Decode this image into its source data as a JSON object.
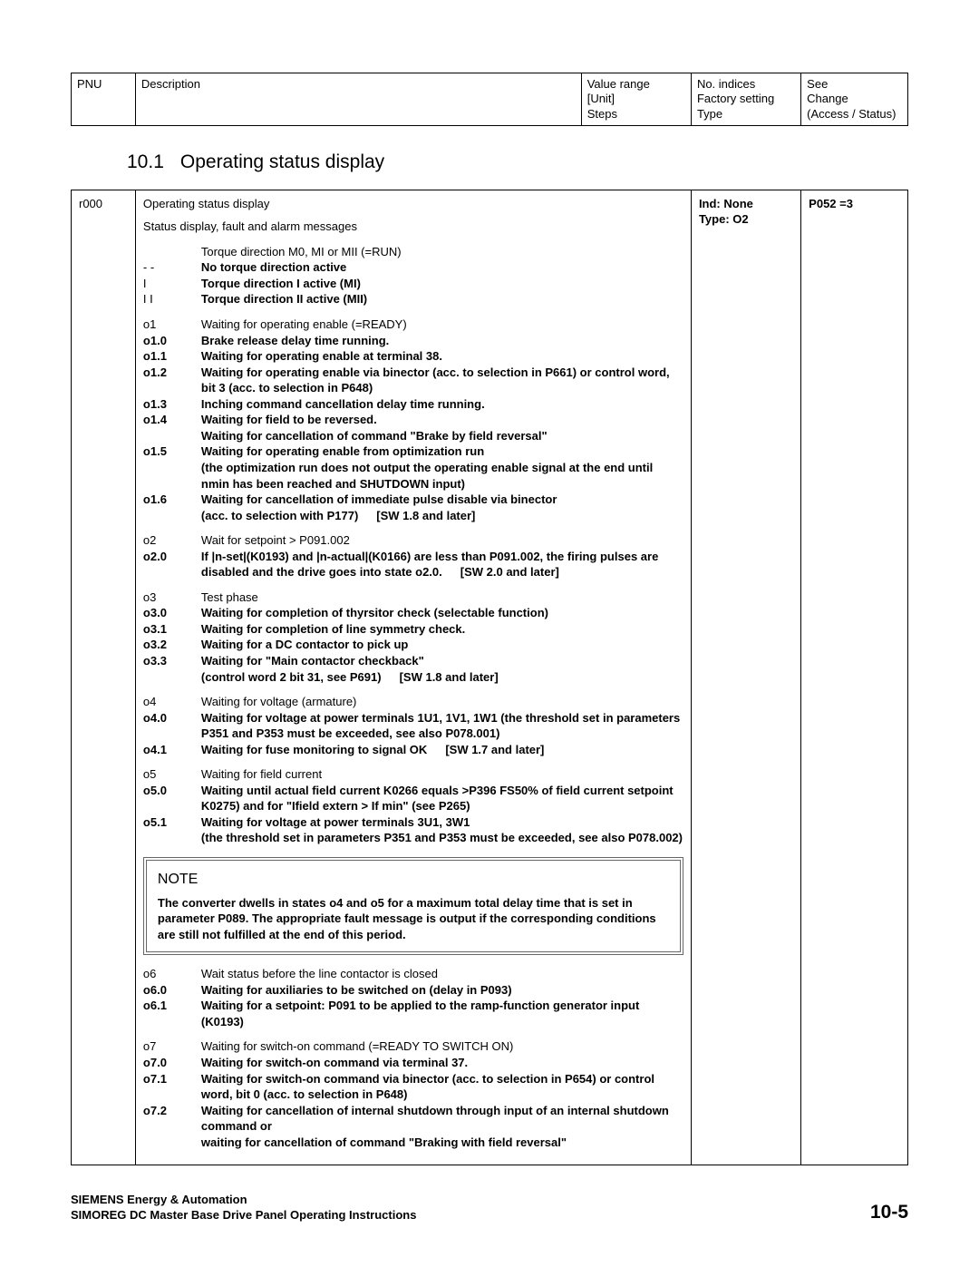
{
  "header_table": {
    "c1": "PNU",
    "c2": "Description",
    "c3": "Value range\n[Unit]\nSteps",
    "c4": "No. indices\nFactory setting\nType",
    "c5": "See\nChange\n(Access / Status)"
  },
  "section": {
    "number": "10.1",
    "title": "Operating status display"
  },
  "param": {
    "pnu": "r000",
    "title": "Operating status display",
    "ind": "Ind: None",
    "type": "Type: O2",
    "see": "P052 =3",
    "intro": "Status display, fault and alarm messages",
    "group0": {
      "r1": {
        "code": "",
        "txt": "Torque direction M0, MI or MII  (=RUN)"
      },
      "r2": {
        "code": "- -",
        "txt": "No torque direction active"
      },
      "r3": {
        "code": "I",
        "txt": "Torque direction I active (MI)"
      },
      "r4": {
        "code": "I I",
        "txt": "Torque direction II active (MII)"
      }
    },
    "group1": {
      "r1": {
        "code": "o1",
        "txt": "Waiting for operating enable  (=READY)"
      },
      "r2": {
        "code": "o1.0",
        "txt": "Brake release delay time running."
      },
      "r3": {
        "code": "o1.1",
        "txt": "Waiting for operating enable at terminal 38."
      },
      "r4": {
        "code": "o1.2",
        "txt": "Waiting for operating enable via binector (acc. to selection in P661) or control word, bit 3 (acc. to selection in P648)"
      },
      "r5": {
        "code": "o1.3",
        "txt": "Inching command cancellation delay time running."
      },
      "r6": {
        "code": "o1.4",
        "txt": "Waiting for field to be reversed.\nWaiting for cancellation of command \"Brake by field reversal\""
      },
      "r7": {
        "code": "o1.5",
        "txt": "Waiting for operating enable from optimization run\n(the optimization run does not output the operating enable signal at the end until nmin has been reached and SHUTDOWN input)"
      },
      "r8": {
        "code": "o1.6",
        "txt": "Waiting for cancellation of immediate pulse disable via binector\n(acc. to selection with P177)",
        "sw": "[SW 1.8 and later]"
      }
    },
    "group2": {
      "r1": {
        "code": "o2",
        "txt": "Wait for setpoint > P091.002"
      },
      "r2": {
        "code": "o2.0",
        "txt": "If |n-set|(K0193) and |n-actual|(K0166) are less than P091.002, the firing pulses are disabled and the drive goes into state o2.0.",
        "sw": "[SW 2.0 and later]"
      }
    },
    "group3": {
      "r1": {
        "code": "o3",
        "txt": "Test phase"
      },
      "r2": {
        "code": "o3.0",
        "txt": "Waiting for completion of thyrsitor check (selectable function)"
      },
      "r3": {
        "code": "o3.1",
        "txt": "Waiting for completion of line symmetry check."
      },
      "r4": {
        "code": "o3.2",
        "txt": "Waiting for a DC contactor to pick up"
      },
      "r5": {
        "code": "o3.3",
        "txt": "Waiting for \"Main contactor checkback\"\n(control word 2 bit 31, see P691)",
        "sw": "[SW 1.8 and later]"
      }
    },
    "group4": {
      "r1": {
        "code": "o4",
        "txt": "Waiting for voltage (armature)"
      },
      "r2": {
        "code": "o4.0",
        "txt": "Waiting for voltage at power terminals 1U1, 1V1, 1W1 (the threshold set in parameters P351 and P353 must be exceeded, see also P078.001)"
      },
      "r3": {
        "code": "o4.1",
        "txt": "Waiting for fuse monitoring to signal OK",
        "sw": "[SW 1.7 and later]"
      }
    },
    "group5": {
      "r1": {
        "code": "o5",
        "txt": "Waiting for field current"
      },
      "r2": {
        "code": "o5.0",
        "txt": "Waiting until actual field current K0266 equals >P396 FS50% of field current setpoint K0275) and for \"Ifield extern > If min\" (see P265)"
      },
      "r3": {
        "code": "o5.1",
        "txt": "Waiting for voltage at power terminals 3U1, 3W1\n(the threshold set in parameters P351 and P353 must be exceeded, see also P078.002)"
      }
    },
    "note": {
      "heading": "NOTE",
      "body": "The converter dwells in states o4 and o5 for a maximum total delay time that is set in parameter P089. The appropriate fault message is output if the corresponding conditions are still not fulfilled at the end of this period."
    },
    "group6": {
      "r1": {
        "code": "o6",
        "txt": "Wait status before the line contactor is closed"
      },
      "r2": {
        "code": "o6.0",
        "txt": "Waiting for auxiliaries to be switched on (delay in P093)"
      },
      "r3": {
        "code": "o6.1",
        "txt": "Waiting for a setpoint: P091 to be applied to the ramp-function generator input (K0193)"
      }
    },
    "group7": {
      "r1": {
        "code": "o7",
        "txt": "Waiting for switch-on command  (=READY TO SWITCH ON)"
      },
      "r2": {
        "code": "o7.0",
        "txt": "Waiting for switch-on command via terminal 37."
      },
      "r3": {
        "code": "o7.1",
        "txt": "Waiting for switch-on command via binector (acc. to selection in P654) or control word, bit 0 (acc. to selection in P648)"
      },
      "r4": {
        "code": "o7.2",
        "txt": "Waiting for cancellation of internal shutdown through input of an internal shutdown command or\nwaiting for cancellation of command \"Braking with field reversal\""
      }
    }
  },
  "footer": {
    "l1": "SIEMENS  Energy & Automation",
    "l2": "SIMOREG DC Master Base Drive Panel  Operating Instructions",
    "page": "10-5"
  }
}
